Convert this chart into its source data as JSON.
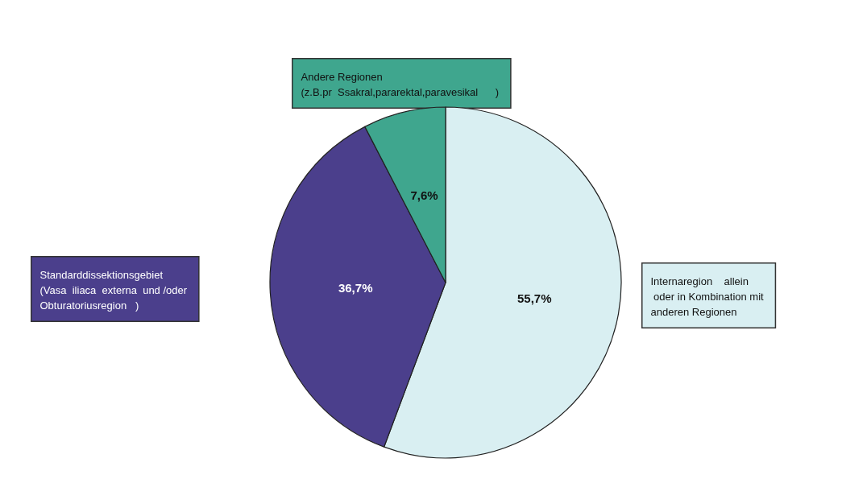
{
  "chart_data": {
    "type": "pie",
    "categories": [
      "Internaregion    allein\n oder in Kombination mit\nanderen Regionen",
      "Standarddissektionsgebiet\n(Vasa  iliaca  externa  und /oder\nObturatoriusregion   )",
      "Andere Regionen\n(z.B.pr  Ssakral,pararektal,paravesikal      )"
    ],
    "values": [
      55.7,
      36.7,
      7.6
    ],
    "value_labels": [
      "55,7%",
      "36,7%",
      "7,6%"
    ],
    "colors": [
      "#d9eff2",
      "#4b3f8c",
      "#3fa68e"
    ]
  }
}
